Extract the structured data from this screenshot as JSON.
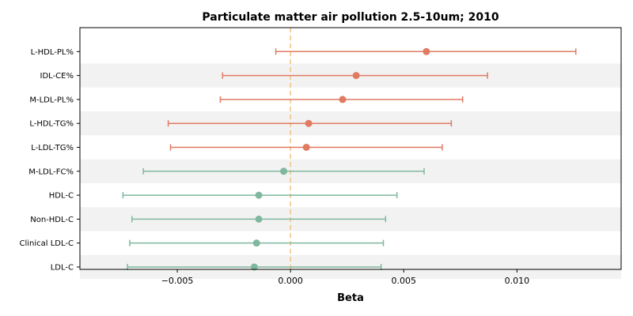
{
  "chart_data": {
    "type": "scatter",
    "title": "Particulate matter air pollution 2.5-10um; 2010",
    "xlabel": "Beta",
    "ylabel": "",
    "xlim": [
      -0.0093,
      0.0146
    ],
    "xticks": [
      -0.005,
      0.0,
      0.005,
      0.01
    ],
    "xtick_labels": [
      "−0.005",
      "0.000",
      "0.005",
      "0.010"
    ],
    "reference_line": 0.0,
    "grid": false,
    "colors": {
      "positive": "#e07b62",
      "negative": "#7fb89e",
      "reference": "#f2c27c",
      "band": "#f2f2f2"
    },
    "points": [
      {
        "label": "L-HDL-PL%",
        "beta": 0.006,
        "ci_low": -0.00065,
        "ci_high": 0.0126
      },
      {
        "label": "IDL-CE%",
        "beta": 0.0029,
        "ci_low": -0.003,
        "ci_high": 0.0087
      },
      {
        "label": "M-LDL-PL%",
        "beta": 0.0023,
        "ci_low": -0.0031,
        "ci_high": 0.0076
      },
      {
        "label": "L-HDL-TG%",
        "beta": 0.0008,
        "ci_low": -0.0054,
        "ci_high": 0.0071
      },
      {
        "label": "L-LDL-TG%",
        "beta": 0.0007,
        "ci_low": -0.0053,
        "ci_high": 0.0067
      },
      {
        "label": "M-LDL-FC%",
        "beta": -0.0003,
        "ci_low": -0.0065,
        "ci_high": 0.0059
      },
      {
        "label": "HDL-C",
        "beta": -0.0014,
        "ci_low": -0.0074,
        "ci_high": 0.0047
      },
      {
        "label": "Non-HDL-C",
        "beta": -0.0014,
        "ci_low": -0.007,
        "ci_high": 0.0042
      },
      {
        "label": "Clinical LDL-C",
        "beta": -0.0015,
        "ci_low": -0.0071,
        "ci_high": 0.0041
      },
      {
        "label": "LDL-C",
        "beta": -0.0016,
        "ci_low": -0.0072,
        "ci_high": 0.004
      }
    ]
  }
}
